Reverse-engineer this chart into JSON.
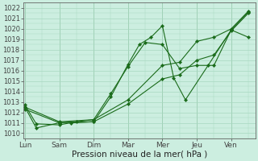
{
  "xlabel": "Pression niveau de la mer( hPa )",
  "bg_color": "#cceee0",
  "grid_color": "#a8d8c0",
  "line_color": "#1a6b1a",
  "x_labels": [
    "Lun",
    "Sam",
    "Dim",
    "Mar",
    "Mer",
    "Jeu",
    "Ven"
  ],
  "x_ticks": [
    0,
    1,
    2,
    3,
    4,
    5,
    6
  ],
  "xlim": [
    -0.05,
    6.7
  ],
  "ylim": [
    1009.5,
    1022.5
  ],
  "yticks": [
    1010,
    1011,
    1012,
    1013,
    1014,
    1015,
    1016,
    1017,
    1018,
    1019,
    1020,
    1021,
    1022
  ],
  "series": [
    {
      "x": [
        0.0,
        0.33,
        1.0,
        1.33,
        2.0,
        2.5,
        3.0,
        3.33,
        3.67,
        4.0,
        4.33,
        4.67,
        5.33,
        6.0,
        6.5
      ],
      "y": [
        1012.7,
        1010.9,
        1010.8,
        1011.0,
        1011.1,
        1013.5,
        1016.6,
        1018.5,
        1019.2,
        1020.3,
        1015.3,
        1013.2,
        1016.5,
        1019.9,
        1021.6
      ]
    },
    {
      "x": [
        0.0,
        0.33,
        1.0,
        1.5,
        2.0,
        2.5,
        3.0,
        3.5,
        4.0,
        4.5,
        5.0,
        5.5,
        6.0,
        6.5
      ],
      "y": [
        1012.5,
        1010.5,
        1011.0,
        1011.1,
        1011.3,
        1013.8,
        1016.4,
        1018.7,
        1018.5,
        1016.2,
        1016.5,
        1016.5,
        1019.9,
        1019.2
      ]
    },
    {
      "x": [
        0.0,
        1.0,
        2.0,
        3.0,
        4.0,
        4.5,
        5.0,
        5.5,
        6.0,
        6.5
      ],
      "y": [
        1012.3,
        1011.0,
        1011.1,
        1012.8,
        1015.2,
        1015.6,
        1017.0,
        1017.5,
        1019.8,
        1021.5
      ]
    },
    {
      "x": [
        0.0,
        1.0,
        2.0,
        3.0,
        4.0,
        4.5,
        5.0,
        5.5,
        6.0,
        6.5
      ],
      "y": [
        1012.5,
        1011.1,
        1011.3,
        1013.2,
        1016.5,
        1016.8,
        1018.8,
        1019.2,
        1020.0,
        1021.7
      ]
    }
  ]
}
